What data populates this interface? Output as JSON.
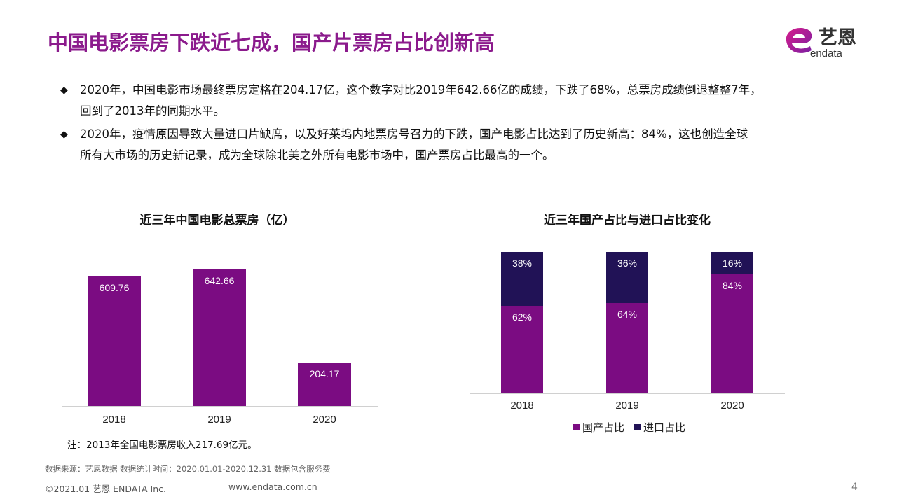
{
  "title": "中国电影票房下跌近七成，国产片票房占比创新高",
  "logo": {
    "cn": "艺恩",
    "en": "endata",
    "icon": "endata-e-logo-icon"
  },
  "bullets": [
    {
      "marker": "◆",
      "lines": [
        "2020年，中国电影市场最终票房定格在204.17亿，这个数字对比2019年642.66亿的成绩，下跌了68%，总票房成绩倒退整整7年，",
        "回到了2013年的同期水平。"
      ]
    },
    {
      "marker": "◆",
      "lines": [
        "2020年，疫情原因导致大量进口片缺席，以及好莱坞内地票房号召力的下跌，国产电影占比达到了历史新高：84%，这也创造全球",
        "所有大市场的历史新记录，成为全球除北美之外所有电影市场中，国产票房占比最高的一个。"
      ]
    }
  ],
  "chart_data": [
    {
      "type": "bar",
      "title": "近三年中国电影总票房（亿）",
      "categories": [
        "2018",
        "2019",
        "2020"
      ],
      "values": [
        609.76,
        642.66,
        204.17
      ],
      "value_labels": [
        "609.76",
        "642.66",
        "204.17"
      ],
      "ylim": [
        0,
        700
      ],
      "grid": false,
      "color": "#7b0c82"
    },
    {
      "type": "bar",
      "stacked": true,
      "title": "近三年国产占比与进口占比变化",
      "categories": [
        "2018",
        "2019",
        "2020"
      ],
      "series": [
        {
          "name": "国产占比",
          "values": [
            62,
            64,
            84
          ],
          "labels": [
            "62%",
            "64%",
            "84%"
          ],
          "color": "#7b0c82"
        },
        {
          "name": "进口占比",
          "values": [
            38,
            36,
            16
          ],
          "labels": [
            "38%",
            "36%",
            "16%"
          ],
          "color": "#211256"
        }
      ],
      "ylim": [
        0,
        100
      ],
      "legend": "bottom",
      "grid": false
    }
  ],
  "note": "注：2013年全国电影票房收入217.69亿元。",
  "source": "数据来源：艺恩数据   数据统计时间：2020.01.01-2020.12.31 数据包含服务费",
  "footer": {
    "copyright": "©2021.01 艺恩 ENDATA Inc.",
    "website": "www.endata.com.cn",
    "page": "4"
  }
}
